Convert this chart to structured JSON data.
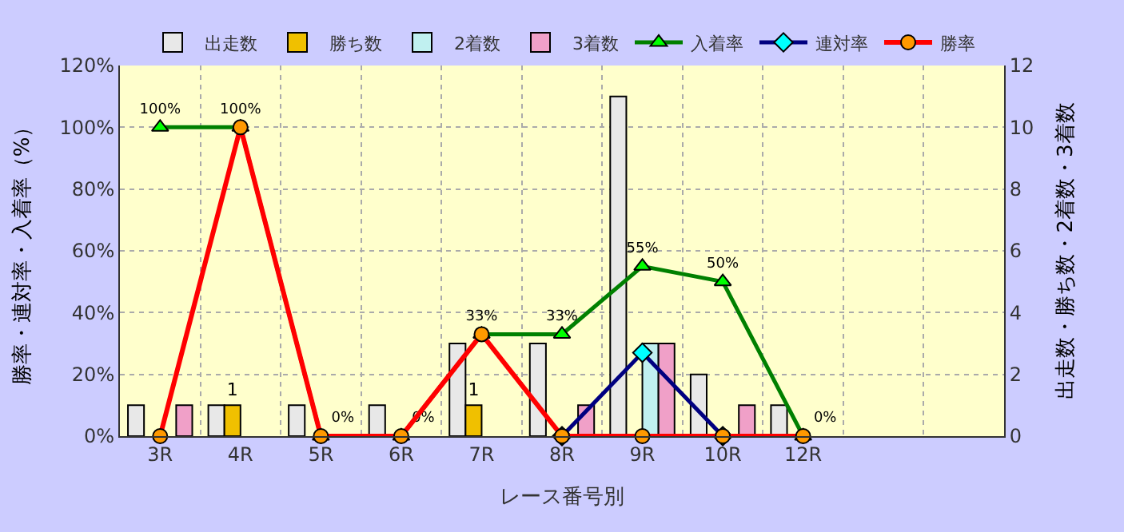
{
  "chart_data": {
    "type": "bar",
    "xlabel": "レース番号別",
    "ylabel": "勝率・連対率・入着率（%）",
    "y2label": "出走数・勝ち数・2着数・3着数",
    "categories": [
      "3R",
      "4R",
      "5R",
      "6R",
      "7R",
      "8R",
      "9R",
      "10R",
      "12R",
      null,
      null
    ],
    "series": [
      {
        "name": "出走数",
        "axis": "y2",
        "color": "#e8e8e8",
        "values": [
          1,
          1,
          1,
          1,
          3,
          3,
          11,
          2,
          1,
          null,
          null
        ]
      },
      {
        "name": "勝ち数",
        "axis": "y2",
        "color": "#f0c000",
        "values": [
          null,
          1,
          null,
          null,
          1,
          null,
          null,
          null,
          null,
          null,
          null
        ],
        "value_labels": [
          null,
          "1",
          null,
          null,
          "1",
          null,
          null,
          null,
          null,
          null,
          null
        ]
      },
      {
        "name": "2着数",
        "axis": "y2",
        "color": "#c0f0f0",
        "values": [
          null,
          null,
          null,
          null,
          null,
          null,
          3,
          null,
          null,
          null,
          null
        ]
      },
      {
        "name": "3着数",
        "axis": "y2",
        "color": "#f0a0c8",
        "values": [
          1,
          null,
          null,
          null,
          null,
          1,
          3,
          1,
          null,
          null,
          null
        ]
      },
      {
        "name": "入着率",
        "type": "line",
        "axis": "y",
        "color": "#008000",
        "marker": "triangle",
        "values": [
          100,
          100,
          0,
          0,
          33,
          33,
          55,
          50,
          0,
          null,
          null
        ],
        "value_labels": [
          "100%",
          "100%",
          "0%",
          "0%",
          "33%",
          "33%",
          "55%",
          "50%",
          "0%",
          null,
          null
        ]
      },
      {
        "name": "連対率",
        "type": "line",
        "axis": "y",
        "color": "#000080",
        "marker": "diamond",
        "values": [
          null,
          null,
          null,
          null,
          null,
          0,
          27,
          0,
          null,
          null,
          null
        ]
      },
      {
        "name": "勝率",
        "type": "line",
        "axis": "y",
        "color": "#ff0000",
        "marker": "circle",
        "values": [
          0,
          100,
          0,
          0,
          33,
          0,
          0,
          0,
          0,
          null,
          null
        ]
      }
    ],
    "ylim": [
      0,
      120
    ],
    "yticks": [
      {
        "value": 0,
        "label": "0%"
      },
      {
        "value": 20,
        "label": "20%"
      },
      {
        "value": 40,
        "label": "40%"
      },
      {
        "value": 60,
        "label": "60%"
      },
      {
        "value": 80,
        "label": "80%"
      },
      {
        "value": 100,
        "label": "100%"
      },
      {
        "value": 120,
        "label": "120%"
      }
    ],
    "y2lim": [
      0,
      12
    ],
    "y2ticks": [
      0,
      2,
      4,
      6,
      8,
      10,
      12
    ],
    "grid": true,
    "legend": "top"
  }
}
